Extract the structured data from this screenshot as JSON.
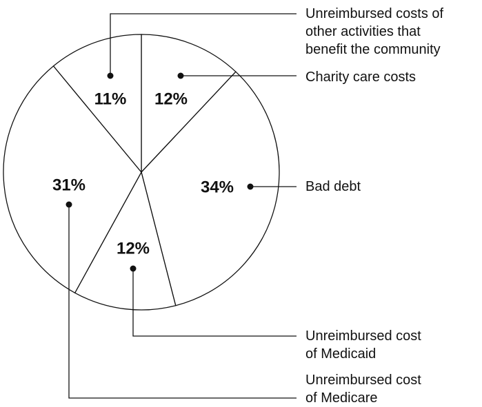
{
  "chart_data": {
    "type": "pie",
    "categories": [
      "Charity care costs",
      "Bad debt",
      "Unreimbursed cost\nof Medicaid",
      "Unreimbursed cost\nof Medicare",
      "Unreimbursed costs of\nother activities that\nbenefit the community"
    ],
    "values": [
      12,
      34,
      12,
      31,
      11
    ],
    "value_labels": [
      "12%",
      "34%",
      "12%",
      "31%",
      "11%"
    ],
    "color": "#ffffff"
  }
}
